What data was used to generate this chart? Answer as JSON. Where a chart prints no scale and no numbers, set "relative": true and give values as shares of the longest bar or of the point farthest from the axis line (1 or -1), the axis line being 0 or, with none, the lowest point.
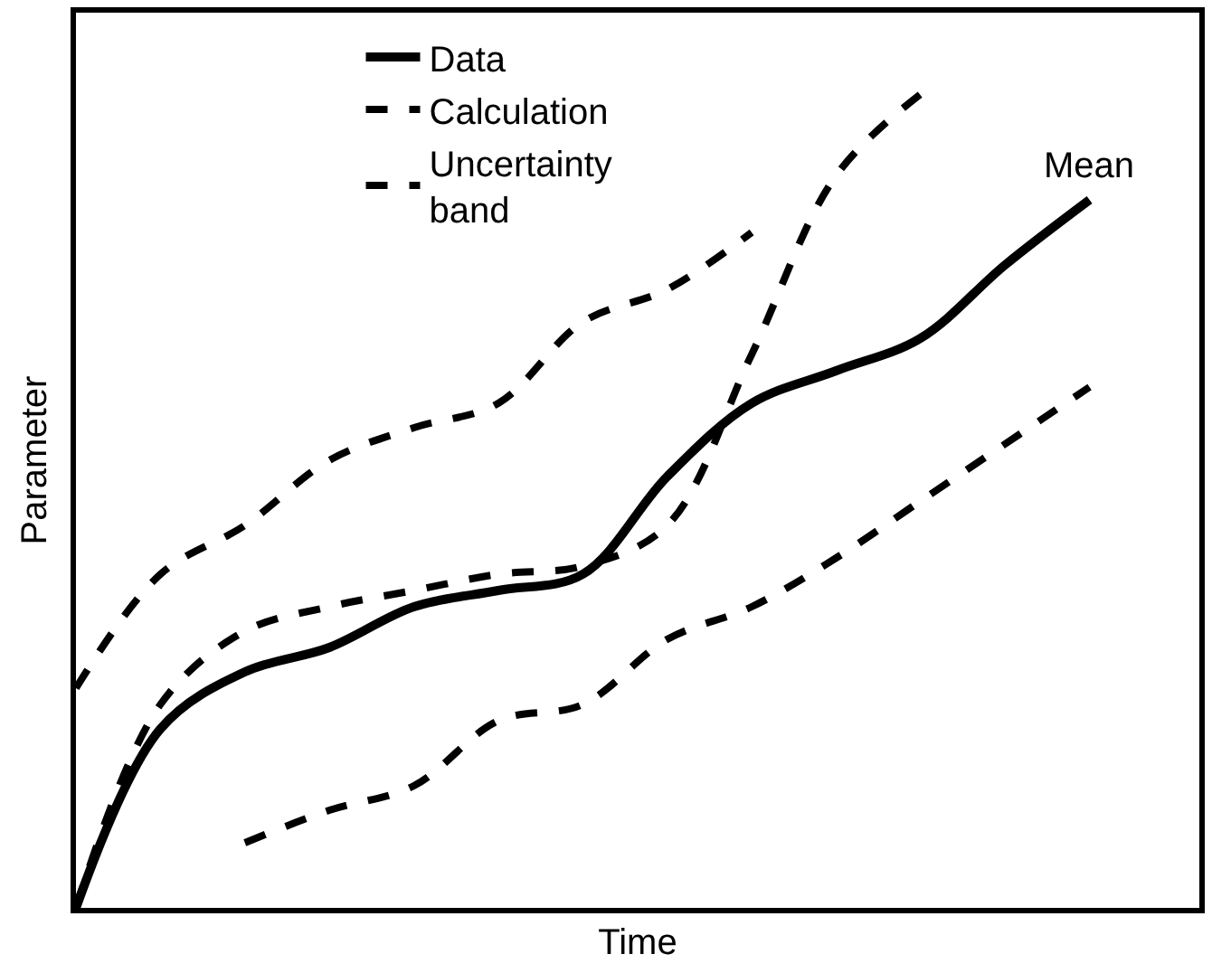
{
  "chart_data": {
    "type": "line",
    "relative": true,
    "xlabel": "Time",
    "ylabel": "Parameter",
    "legend": "top",
    "marker": "none",
    "categories": [
      null,
      null,
      null,
      null,
      null,
      null,
      null,
      null,
      null,
      null,
      null,
      null,
      null,
      null
    ],
    "series": [
      {
        "name": "Data",
        "color": "#000000",
        "line_style": "solid",
        "values": [
          0,
          0.22,
          0.29,
          0.32,
          0.37,
          0.39,
          0.41,
          0.53,
          0.62,
          0.66,
          0.7,
          0.79,
          0.87,
          null
        ]
      },
      {
        "name": "Calculation",
        "color": "#000000",
        "line_style": "dashed",
        "values": [
          0,
          0.25,
          0.34,
          0.37,
          0.39,
          0.41,
          0.42,
          0.47,
          0.68,
          0.9,
          1,
          null,
          null,
          null
        ]
      },
      {
        "name": "Uncertainty\nband",
        "color": "#000000",
        "line_style": "dashed",
        "values": [
          0.27,
          0.41,
          0.47,
          0.55,
          0.59,
          0.62,
          0.72,
          0.76,
          0.83,
          null,
          null,
          null,
          null,
          null
        ]
      },
      {
        "color": "#000000",
        "line_style": "dashed",
        "values": [
          null,
          null,
          0.08,
          0.12,
          0.15,
          0.23,
          0.25,
          0.33,
          0.37,
          0.43,
          0.5,
          0.57,
          0.64,
          null
        ]
      }
    ],
    "annotations": [
      "Mean"
    ]
  }
}
